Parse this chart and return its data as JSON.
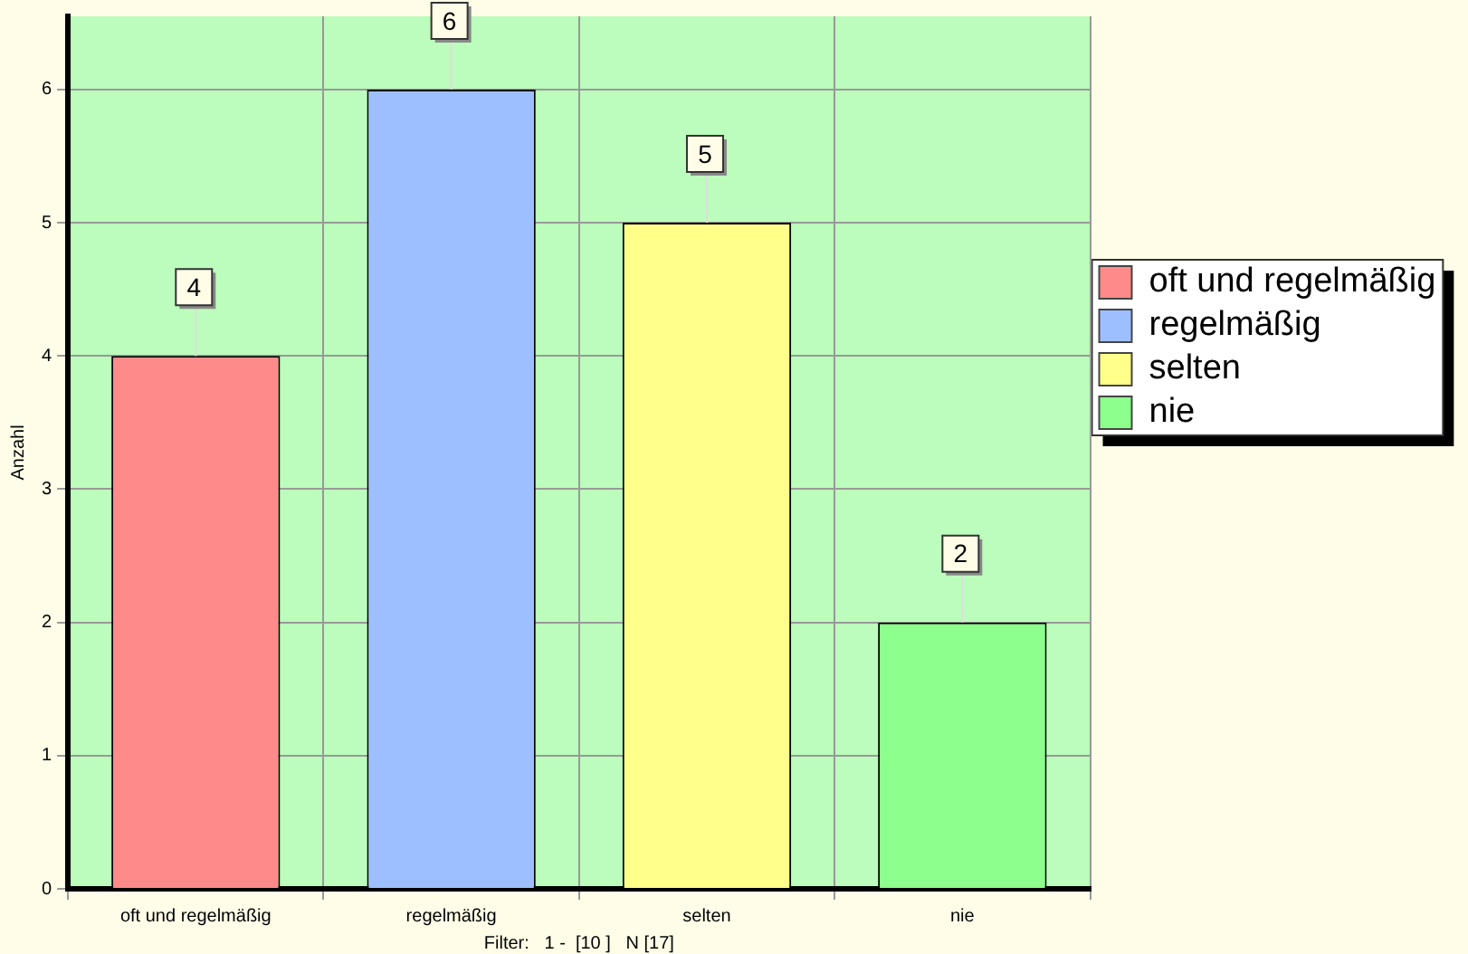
{
  "chart_data": {
    "type": "bar",
    "xlabel": "Filter:   1 -  [10 ]   N [17]",
    "ylabel": "Anzahl",
    "categories": [
      "oft und regelmäßig",
      "regelmäßig",
      "selten",
      "nie"
    ],
    "series": [
      {
        "name": "oft und regelmäßig",
        "color": "#ff8a8a",
        "values": [
          4,
          null,
          null,
          null
        ]
      },
      {
        "name": "regelmäßig",
        "color": "#9ebfff",
        "values": [
          null,
          6,
          null,
          null
        ]
      },
      {
        "name": "selten",
        "color": "#ffff8a",
        "values": [
          null,
          null,
          5,
          null
        ]
      },
      {
        "name": "nie",
        "color": "#8cff8c",
        "values": [
          null,
          null,
          null,
          2
        ]
      }
    ],
    "ylim": [
      0,
      6.55
    ],
    "yticks": [
      0,
      1,
      2,
      3,
      4,
      5,
      6
    ],
    "grid": true,
    "legend": "right",
    "data_labels": true
  }
}
